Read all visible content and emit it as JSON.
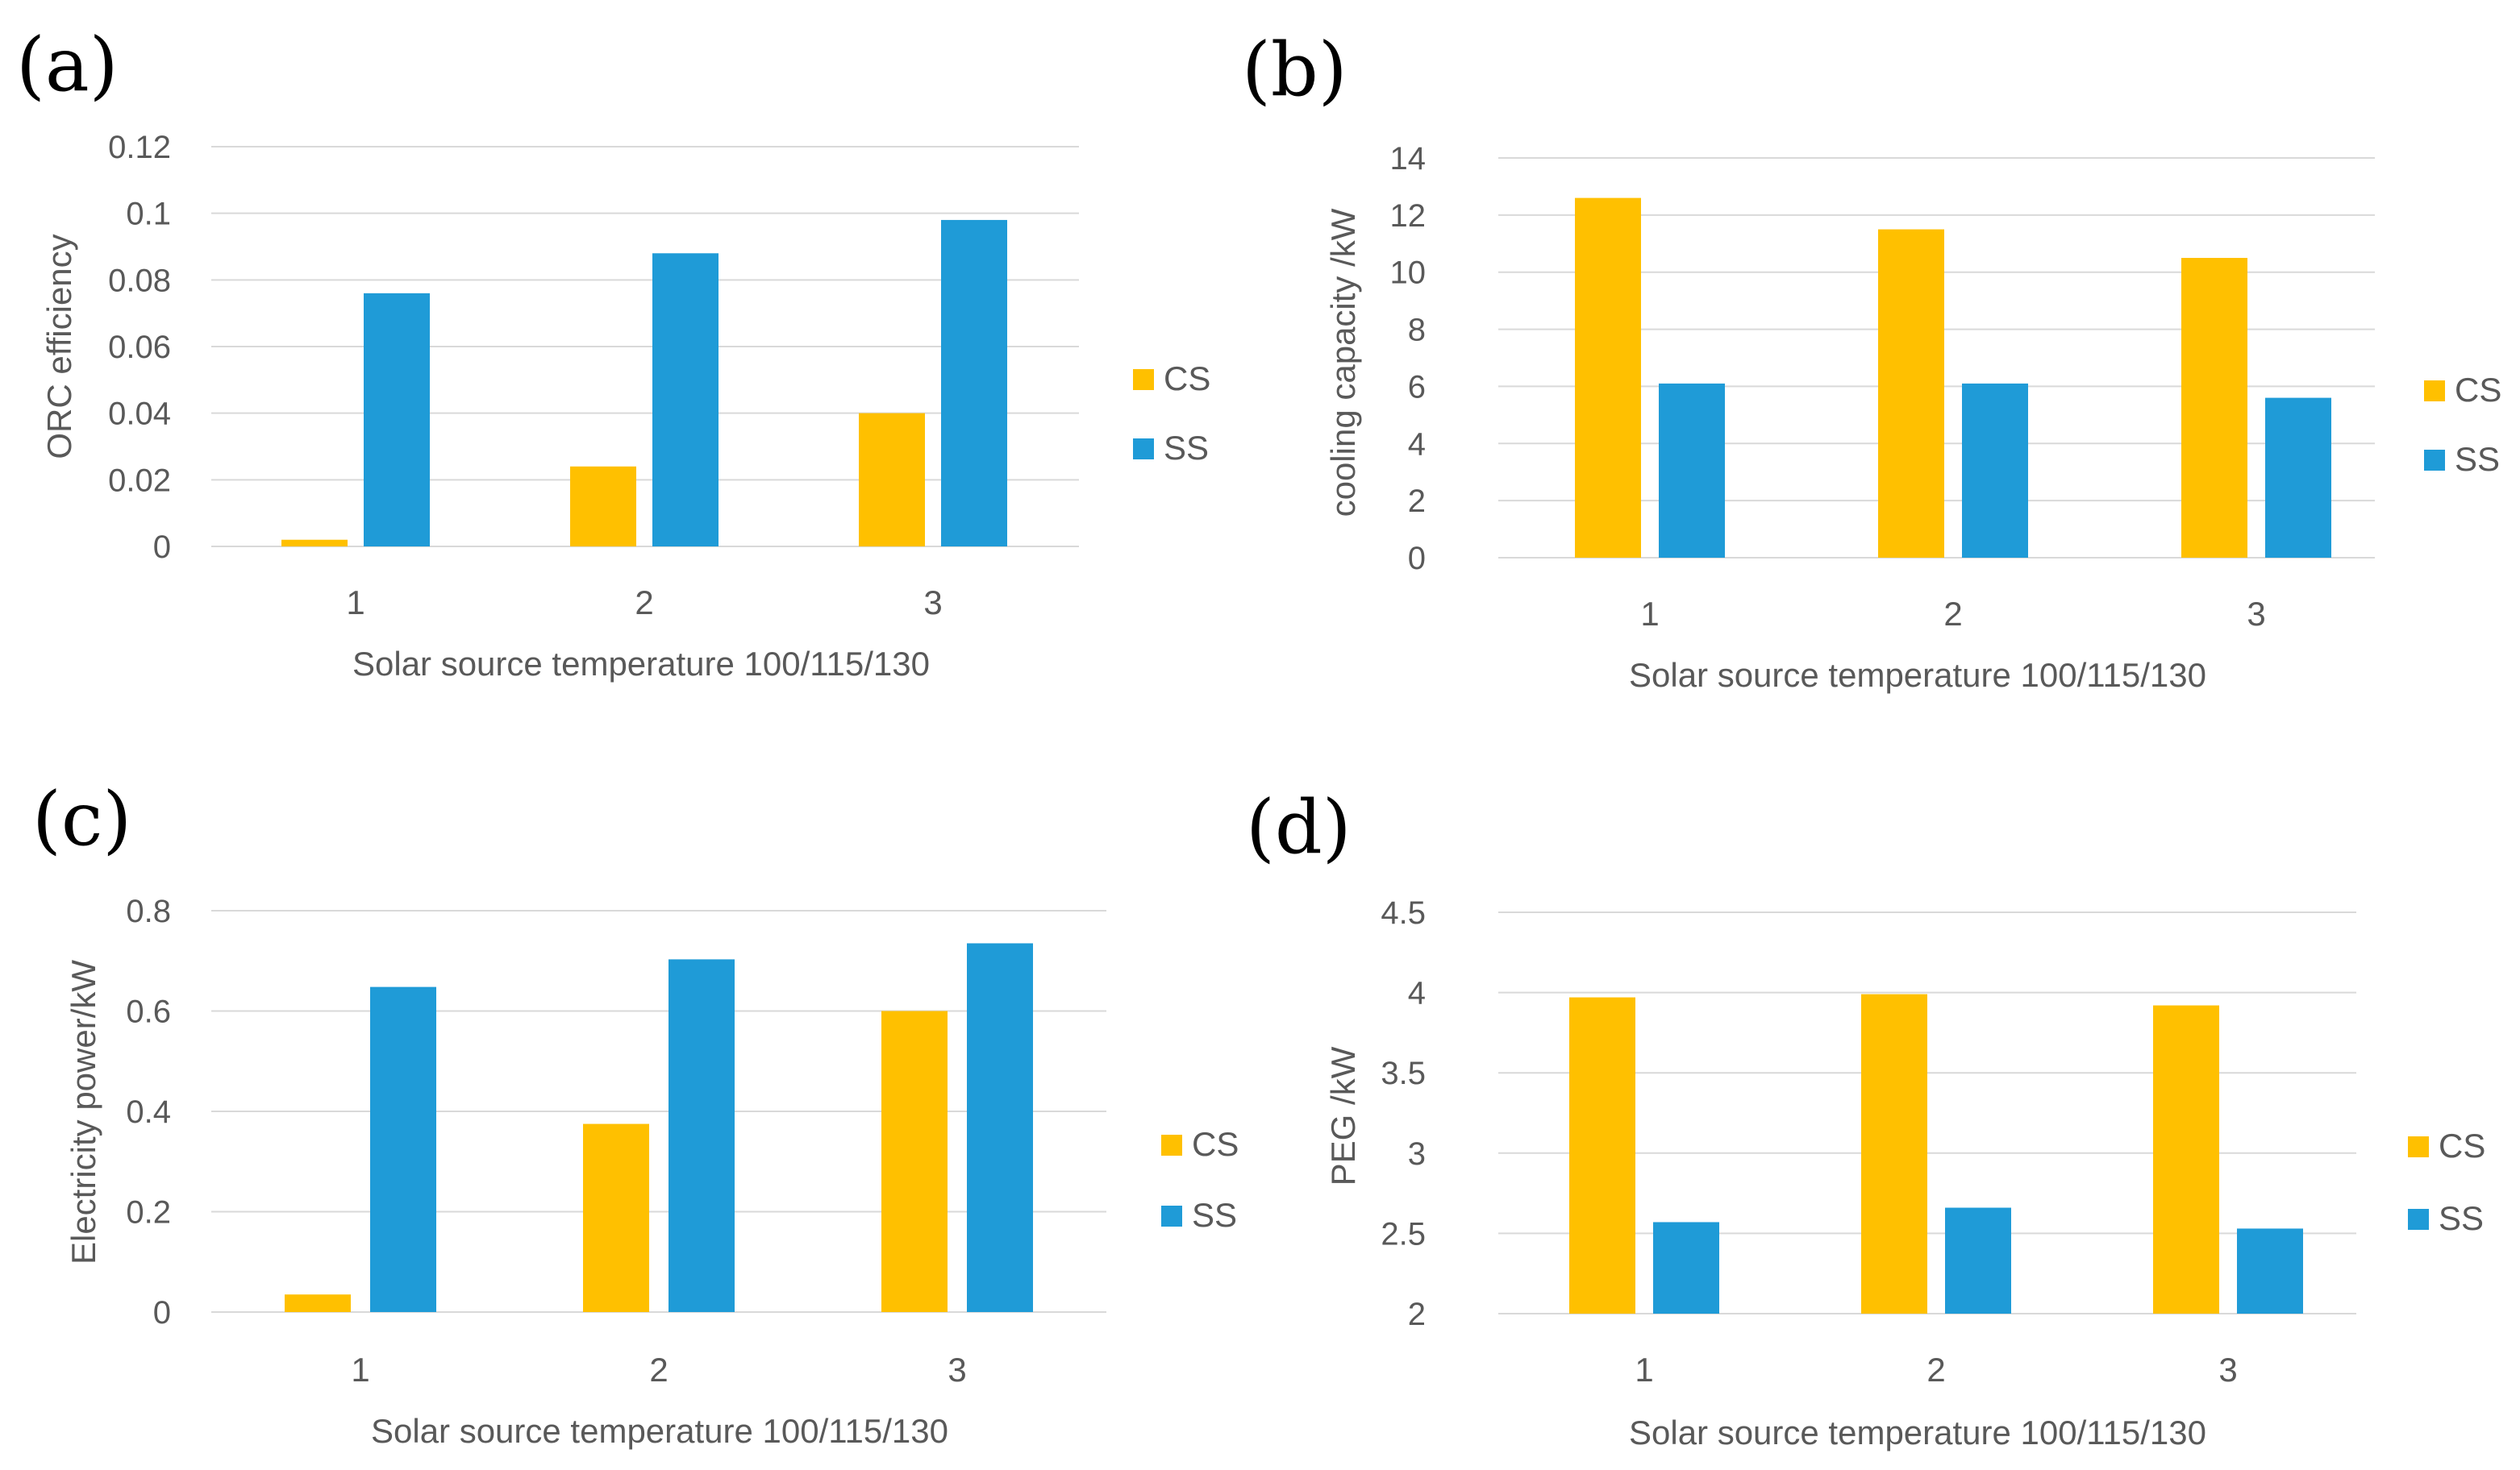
{
  "colors": {
    "CS": "#ffc000",
    "SS": "#1f9bd7",
    "grid": "#d9d9d9",
    "text": "#595959"
  },
  "chart_data": [
    {
      "panel": "(a)",
      "type": "bar",
      "categories": [
        "1",
        "2",
        "3"
      ],
      "series": [
        {
          "name": "CS",
          "values": [
            0.002,
            0.024,
            0.04
          ]
        },
        {
          "name": "SS",
          "values": [
            0.076,
            0.088,
            0.098
          ]
        }
      ],
      "xlabel": "Solar source temperature 100/115/130",
      "ylabel": "ORC efficiency",
      "ylim": [
        0,
        0.12
      ],
      "yticks": [
        "0",
        "0.02",
        "0.04",
        "0.06",
        "0.08",
        "0.1",
        "0.12"
      ],
      "legend": "right",
      "grid": true
    },
    {
      "panel": "(b)",
      "type": "bar",
      "categories": [
        "1",
        "2",
        "3"
      ],
      "series": [
        {
          "name": "CS",
          "values": [
            12.6,
            11.5,
            10.5
          ]
        },
        {
          "name": "SS",
          "values": [
            6.1,
            6.1,
            5.6
          ]
        }
      ],
      "xlabel": "Solar source temperature 100/115/130",
      "ylabel": "cooling capacity /kW",
      "ylim": [
        0,
        14
      ],
      "yticks": [
        "0",
        "2",
        "4",
        "6",
        "8",
        "10",
        "12",
        "14"
      ],
      "legend": "right",
      "grid": true
    },
    {
      "panel": "(c)",
      "type": "bar",
      "categories": [
        "1",
        "2",
        "3"
      ],
      "series": [
        {
          "name": "CS",
          "values": [
            0.035,
            0.375,
            0.6
          ]
        },
        {
          "name": "SS",
          "values": [
            0.648,
            0.703,
            0.735
          ]
        }
      ],
      "xlabel": "Solar source temperature 100/115/130",
      "ylabel": "Electricity power/kW",
      "ylim": [
        0,
        0.8
      ],
      "yticks": [
        "0",
        "0.2",
        "0.4",
        "0.6",
        "0.8"
      ],
      "legend": "right",
      "grid": true
    },
    {
      "panel": "(d)",
      "type": "bar",
      "categories": [
        "1",
        "2",
        "3"
      ],
      "series": [
        {
          "name": "CS",
          "values": [
            3.97,
            3.99,
            3.92
          ]
        },
        {
          "name": "SS",
          "values": [
            2.57,
            2.66,
            2.53
          ]
        }
      ],
      "xlabel": "Solar source temperature 100/115/130",
      "ylabel": "PEG /kW",
      "ylim": [
        2,
        4.5
      ],
      "yticks": [
        "2",
        "2.5",
        "3",
        "3.5",
        "4",
        "4.5"
      ],
      "legend": "right",
      "grid": true
    }
  ]
}
